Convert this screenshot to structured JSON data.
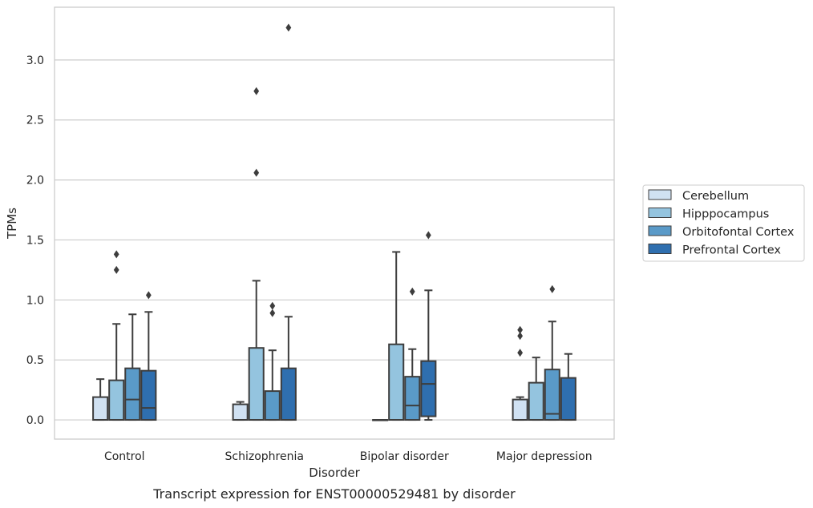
{
  "caption": "Transcript expression for ENST00000529481 by disorder",
  "chart_data": {
    "type": "box",
    "xlabel": "Disorder",
    "ylabel": "TPMs",
    "ylim": [
      -0.16,
      3.44
    ],
    "yticks": [
      "0.0",
      "0.5",
      "1.0",
      "1.5",
      "2.0",
      "2.5",
      "3.0"
    ],
    "grid": "horizontal",
    "legend_position": "right",
    "categories": [
      "Control",
      "Schizophrenia",
      "Bipolar disorder",
      "Major depression"
    ],
    "series": [
      {
        "name": "Cerebellum",
        "color": "#d0e1f2",
        "boxes": [
          {
            "q1": 0.0,
            "median": 0.0,
            "q3": 0.19,
            "whisker_low": 0.0,
            "whisker_high": 0.34,
            "outliers": []
          },
          {
            "q1": 0.0,
            "median": 0.0,
            "q3": 0.13,
            "whisker_low": 0.0,
            "whisker_high": 0.15,
            "outliers": []
          },
          {
            "q1": 0.0,
            "median": 0.0,
            "q3": 0.0,
            "whisker_low": 0.0,
            "whisker_high": 0.0,
            "outliers": []
          },
          {
            "q1": 0.0,
            "median": 0.0,
            "q3": 0.17,
            "whisker_low": 0.0,
            "whisker_high": 0.19,
            "outliers": [
              0.56,
              0.7,
              0.75
            ]
          }
        ]
      },
      {
        "name": "Hipppocampus",
        "color": "#94c4df",
        "boxes": [
          {
            "q1": 0.0,
            "median": 0.0,
            "q3": 0.33,
            "whisker_low": 0.0,
            "whisker_high": 0.8,
            "outliers": [
              1.25,
              1.38
            ]
          },
          {
            "q1": 0.0,
            "median": 0.0,
            "q3": 0.6,
            "whisker_low": 0.0,
            "whisker_high": 1.16,
            "outliers": [
              2.06,
              2.74
            ]
          },
          {
            "q1": 0.0,
            "median": 0.0,
            "q3": 0.63,
            "whisker_low": 0.0,
            "whisker_high": 1.4,
            "outliers": []
          },
          {
            "q1": 0.0,
            "median": 0.0,
            "q3": 0.31,
            "whisker_low": 0.0,
            "whisker_high": 0.52,
            "outliers": []
          }
        ]
      },
      {
        "name": "Orbitofontal Cortex",
        "color": "#5a9ac8",
        "boxes": [
          {
            "q1": 0.0,
            "median": 0.17,
            "q3": 0.43,
            "whisker_low": 0.0,
            "whisker_high": 0.88,
            "outliers": []
          },
          {
            "q1": 0.0,
            "median": 0.0,
            "q3": 0.24,
            "whisker_low": 0.0,
            "whisker_high": 0.58,
            "outliers": [
              0.89,
              0.95
            ]
          },
          {
            "q1": 0.0,
            "median": 0.12,
            "q3": 0.36,
            "whisker_low": 0.0,
            "whisker_high": 0.59,
            "outliers": [
              1.07
            ]
          },
          {
            "q1": 0.0,
            "median": 0.05,
            "q3": 0.42,
            "whisker_low": 0.0,
            "whisker_high": 0.82,
            "outliers": [
              1.09
            ]
          }
        ]
      },
      {
        "name": "Prefrontal Cortex",
        "color": "#2f6faf",
        "boxes": [
          {
            "q1": 0.0,
            "median": 0.1,
            "q3": 0.41,
            "whisker_low": 0.0,
            "whisker_high": 0.9,
            "outliers": [
              1.04
            ]
          },
          {
            "q1": 0.0,
            "median": 0.0,
            "q3": 0.43,
            "whisker_low": 0.0,
            "whisker_high": 0.86,
            "outliers": [
              3.27
            ]
          },
          {
            "q1": 0.03,
            "median": 0.3,
            "q3": 0.49,
            "whisker_low": 0.0,
            "whisker_high": 1.08,
            "outliers": [
              1.54
            ]
          },
          {
            "q1": 0.0,
            "median": 0.0,
            "q3": 0.35,
            "whisker_low": 0.0,
            "whisker_high": 0.55,
            "outliers": []
          }
        ]
      }
    ]
  }
}
